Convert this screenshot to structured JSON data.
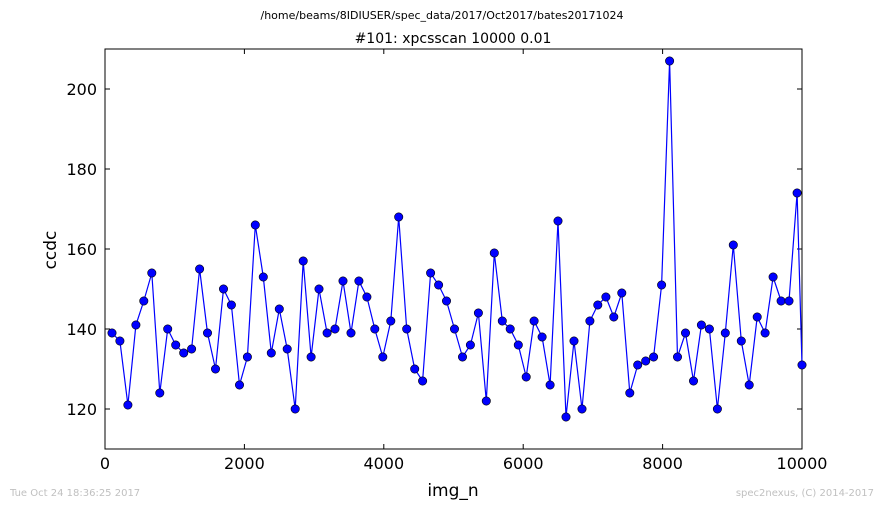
{
  "chart_data": {
    "type": "line",
    "suptitle": "/home/beams/8IDIUSER/spec_data/2017/Oct2017/bates20171024",
    "title": "#101: xpcsscan 10000 0.01",
    "xlabel": "img_n",
    "ylabel": "ccdc",
    "xlim": [
      0,
      10000
    ],
    "ylim": [
      110,
      210
    ],
    "xticks": [
      0,
      2000,
      4000,
      6000,
      8000,
      10000
    ],
    "xtick_labels": [
      "0",
      "2000",
      "4000",
      "6000",
      "8000",
      "10000"
    ],
    "yticks": [
      120,
      140,
      160,
      180,
      200
    ],
    "ytick_labels": [
      "120",
      "140",
      "160",
      "180",
      "200"
    ],
    "grid": false,
    "series": [
      {
        "color": "#0000ff",
        "x": [
          100,
          214,
          328,
          443,
          557,
          671,
          786,
          900,
          1014,
          1129,
          1243,
          1357,
          1471,
          1586,
          1700,
          1814,
          1929,
          2043,
          2157,
          2271,
          2386,
          2500,
          2614,
          2729,
          2843,
          2957,
          3071,
          3186,
          3300,
          3414,
          3529,
          3643,
          3757,
          3871,
          3986,
          4100,
          4214,
          4329,
          4443,
          4557,
          4671,
          4786,
          4900,
          5014,
          5129,
          5243,
          5357,
          5471,
          5586,
          5700,
          5814,
          5929,
          6043,
          6157,
          6271,
          6386,
          6500,
          6614,
          6729,
          6843,
          6957,
          7071,
          7186,
          7300,
          7414,
          7529,
          7643,
          7757,
          7871,
          7986,
          8100,
          8214,
          8329,
          8443,
          8557,
          8671,
          8786,
          8900,
          9014,
          9129,
          9243,
          9357,
          9471,
          9586,
          9700,
          9814,
          9929,
          10000
        ],
        "y": [
          139,
          137,
          121,
          141,
          147,
          154,
          124,
          140,
          136,
          134,
          135,
          155,
          139,
          130,
          150,
          146,
          126,
          133,
          166,
          153,
          134,
          145,
          135,
          120,
          157,
          133,
          150,
          139,
          140,
          152,
          139,
          152,
          148,
          140,
          133,
          142,
          168,
          140,
          130,
          127,
          154,
          151,
          147,
          140,
          133,
          136,
          144,
          122,
          159,
          142,
          140,
          136,
          128,
          142,
          138,
          126,
          167,
          118,
          137,
          120,
          142,
          146,
          148,
          143,
          149,
          124,
          131,
          132,
          133,
          151,
          207,
          133,
          139,
          127,
          141,
          140,
          120,
          139,
          161,
          137,
          126,
          143,
          139,
          153,
          147,
          147,
          174,
          131
        ]
      }
    ]
  },
  "footer": {
    "timestamp": "Tue Oct 24 18:36:25 2017",
    "credit": "spec2nexus, (C) 2014-2017"
  }
}
